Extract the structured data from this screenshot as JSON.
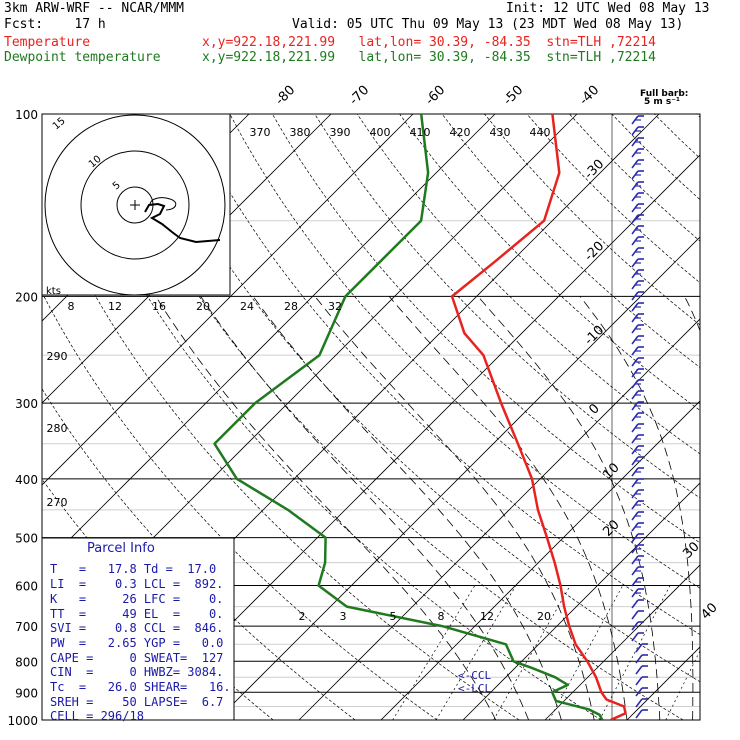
{
  "header": {
    "model": "3km ARW-WRF -- NCAR/MMM",
    "init": "Init: 12 UTC Wed 08 May 13",
    "fcst": "Fcst:    17 h",
    "valid": "Valid: 05 UTC Thu 09 May 13 (23 MDT Wed 08 May 13)",
    "temp_label": "Temperature",
    "temp_info": "x,y=922.18,221.99   lat,lon= 30.39, -84.35  stn=TLH ,72214",
    "dew_label": "Dewpoint temperature",
    "dew_info": "x,y=922.18,221.99   lat,lon= 30.39, -84.35  stn=TLH ,72214"
  },
  "colors": {
    "temperature": "#e8231f",
    "dewpoint": "#1f7a1f",
    "panel_text": "#1a1aa8",
    "barb": "#2a2ab0",
    "grid": "#000000"
  },
  "barb_legend": {
    "line1": "Full barb:",
    "line2": "5 m s⁻¹"
  },
  "hodograph": {
    "unit_label": "kts",
    "ring_labels": [
      "5",
      "10",
      "15"
    ]
  },
  "pressure_labels": [
    "100",
    "200",
    "300",
    "400",
    "500",
    "600",
    "700",
    "800",
    "900",
    "1000"
  ],
  "isotherm_labels": [
    "-80",
    "-70",
    "-60",
    "-50",
    "-40",
    "-30",
    "-20",
    "-10",
    "0",
    "10",
    "20",
    "30",
    "40"
  ],
  "theta_top_labels": [
    "370",
    "380",
    "390",
    "400",
    "410",
    "420",
    "430",
    "440"
  ],
  "mixing_top_labels": [
    "8",
    "12",
    "16",
    "20",
    "24",
    "28",
    "32"
  ],
  "theta_left_labels": [
    "290",
    "280",
    "270"
  ],
  "mixing_low_labels": [
    "2",
    "3",
    "5",
    "8",
    "12",
    "20"
  ],
  "lcl_labels": {
    "ccl": "<-CCL",
    "lcl": "<-LCL"
  },
  "parcel_info": {
    "title": "Parcel Info",
    "rows": [
      "T   =   17.8 Td =  17.0",
      "LI  =    0.3 LCL =  892.",
      "K   =     26 LFC =    0.",
      "TT  =     49 EL  =    0.",
      "SVI =    0.8 CCL =  846.",
      "PW  =   2.65 YGP =   0.0",
      "CAPE =     0 SWEAT=  127",
      "CIN  =     0 HWBZ= 3084.",
      "Tc  =   26.0 SHEAR=   16.",
      "SREH =    50 LAPSE=  6.7",
      "CELL = 296/18"
    ]
  },
  "chart_data": {
    "type": "line",
    "title": "",
    "xlabel": "",
    "ylabel": "",
    "pressure_levels_hPa": [
      1000,
      900,
      800,
      700,
      600,
      500,
      400,
      300,
      200,
      100
    ],
    "series": [
      {
        "name": "Temperature",
        "points": [
          [
            1000,
            18
          ],
          [
            975,
            19
          ],
          [
            950,
            18
          ],
          [
            925,
            15
          ],
          [
            900,
            13.5
          ],
          [
            850,
            11
          ],
          [
            800,
            8
          ],
          [
            750,
            4.5
          ],
          [
            700,
            1.5
          ],
          [
            650,
            -1.5
          ],
          [
            600,
            -4.5
          ],
          [
            550,
            -8
          ],
          [
            500,
            -12
          ],
          [
            450,
            -16.5
          ],
          [
            400,
            -21
          ],
          [
            350,
            -27
          ],
          [
            300,
            -34
          ],
          [
            250,
            -42
          ],
          [
            230,
            -47
          ],
          [
            200,
            -53
          ],
          [
            175,
            -52
          ],
          [
            150,
            -51
          ],
          [
            125,
            -55
          ],
          [
            100,
            -63
          ]
        ]
      },
      {
        "name": "Dewpoint temperature",
        "points": [
          [
            1000,
            17
          ],
          [
            980,
            16
          ],
          [
            960,
            14
          ],
          [
            930,
            9
          ],
          [
            900,
            7.5
          ],
          [
            875,
            8.5
          ],
          [
            850,
            6
          ],
          [
            820,
            2
          ],
          [
            800,
            -1
          ],
          [
            750,
            -4
          ],
          [
            700,
            -14
          ],
          [
            650,
            -28
          ],
          [
            600,
            -34
          ],
          [
            550,
            -36
          ],
          [
            500,
            -39
          ],
          [
            450,
            -47
          ],
          [
            400,
            -57
          ],
          [
            350,
            -64
          ],
          [
            300,
            -64
          ],
          [
            250,
            -62
          ],
          [
            200,
            -66
          ],
          [
            150,
            -66
          ],
          [
            125,
            -71
          ],
          [
            100,
            -79
          ]
        ]
      }
    ]
  }
}
